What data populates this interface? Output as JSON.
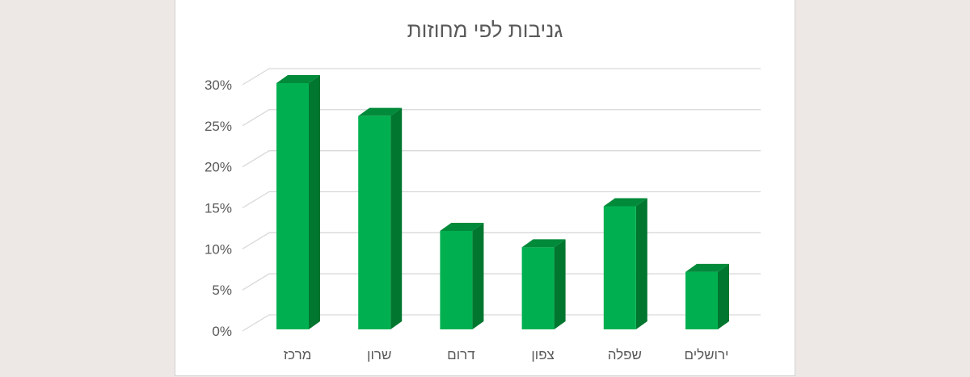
{
  "chart_data": {
    "type": "bar",
    "title": "גניבות לפי מחוזות",
    "categories": [
      "מרכז",
      "שרון",
      "דרום",
      "צפון",
      "שפלה",
      "ירושלים"
    ],
    "values": [
      30,
      26,
      12,
      10,
      15,
      7
    ],
    "value_unit": "%",
    "ylim": [
      0,
      30
    ],
    "yticks": [
      "0%",
      "5%",
      "10%",
      "15%",
      "20%",
      "25%",
      "30%"
    ],
    "ytick_values": [
      0,
      5,
      10,
      15,
      20,
      25,
      30
    ],
    "grid": true,
    "legend": "none",
    "style": "3d-column",
    "colors": {
      "bar_front": "#00b050",
      "bar_side": "#00762f",
      "bar_top": "#008a3a",
      "grid": "#d9d9d9",
      "text": "#595959",
      "background": "#ffffff",
      "page": "#ede8e6"
    }
  }
}
